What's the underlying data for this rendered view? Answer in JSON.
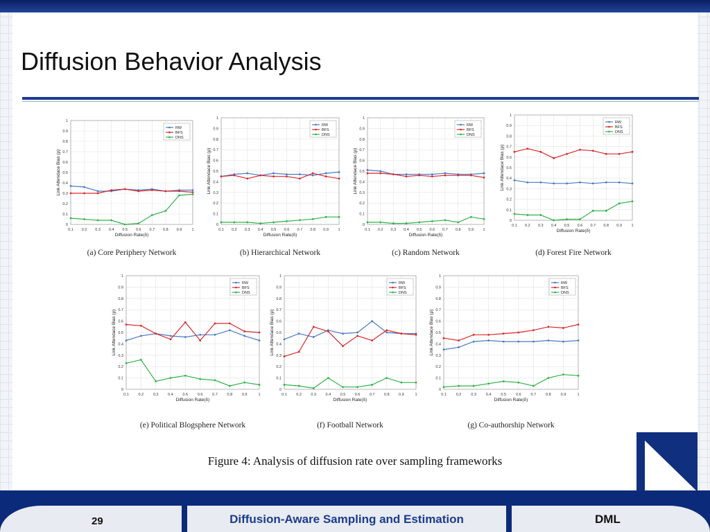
{
  "slide": {
    "title": "Diffusion Behavior Analysis",
    "caption": "Figure 4: Analysis of diffusion rate over sampling frameworks",
    "footer": {
      "page_number": "29",
      "title": "Diffusion-Aware Sampling and Estimation",
      "org": "DML"
    }
  },
  "colors": {
    "RW": "#4a79c4",
    "BFS": "#d9272c",
    "DNS": "#2fb24a"
  },
  "chart_data": [
    {
      "type": "line",
      "caption": "(a) Core Periphery Network",
      "xlabel": "Diffusion Rate(δ)",
      "ylabel": "Link Attendace Bias (ρ)",
      "x": [
        0.1,
        0.2,
        0.3,
        0.4,
        0.5,
        0.6,
        0.7,
        0.8,
        0.9,
        1
      ],
      "xticks": [
        "0.1",
        "0.2",
        "0.3",
        "0.4",
        "0.5",
        "0.6",
        "0.7",
        "0.8",
        "0.9",
        "1"
      ],
      "ylim": [
        0,
        1
      ],
      "yticks": [
        "0",
        "0.1",
        "0.2",
        "0.3",
        "0.4",
        "0.5",
        "0.6",
        "0.7",
        "0.8",
        "0.9",
        "1"
      ],
      "legend": "top-right",
      "series": [
        {
          "name": "RW",
          "values": [
            0.37,
            0.36,
            0.32,
            0.32,
            0.34,
            0.33,
            0.34,
            0.32,
            0.33,
            0.33
          ]
        },
        {
          "name": "BFS",
          "values": [
            0.3,
            0.3,
            0.3,
            0.33,
            0.34,
            0.32,
            0.33,
            0.32,
            0.32,
            0.31
          ]
        },
        {
          "name": "DNS",
          "values": [
            0.06,
            0.05,
            0.04,
            0.04,
            0.0,
            0.01,
            0.09,
            0.13,
            0.28,
            0.29
          ]
        }
      ]
    },
    {
      "type": "line",
      "caption": "(b) Hierarchical Network",
      "xlabel": "Diffusion Rate(δ)",
      "ylabel": "Link Attendace Bias (ρ)",
      "x": [
        0.1,
        0.2,
        0.3,
        0.4,
        0.5,
        0.6,
        0.7,
        0.8,
        0.9,
        1
      ],
      "xticks": [
        "0.1",
        "0.2",
        "0.3",
        "0.4",
        "0.5",
        "0.6",
        "0.7",
        "0.8",
        "0.9",
        "1"
      ],
      "ylim": [
        0,
        1
      ],
      "yticks": [
        "0",
        "0.1",
        "0.2",
        "0.3",
        "0.4",
        "0.5",
        "0.6",
        "0.7",
        "0.8",
        "0.9",
        "1"
      ],
      "legend": "top-right",
      "series": [
        {
          "name": "RW",
          "values": [
            0.45,
            0.47,
            0.48,
            0.46,
            0.48,
            0.47,
            0.47,
            0.46,
            0.48,
            0.49
          ]
        },
        {
          "name": "BFS",
          "values": [
            0.45,
            0.46,
            0.43,
            0.46,
            0.45,
            0.45,
            0.43,
            0.48,
            0.45,
            0.43
          ]
        },
        {
          "name": "DNS",
          "values": [
            0.02,
            0.02,
            0.02,
            0.01,
            0.02,
            0.03,
            0.04,
            0.05,
            0.07,
            0.07
          ]
        }
      ]
    },
    {
      "type": "line",
      "caption": "(c) Random Network",
      "xlabel": "Diffusion Rate(δ)",
      "ylabel": "Link Attendace Bias (ρ)",
      "x": [
        0.1,
        0.2,
        0.3,
        0.4,
        0.5,
        0.6,
        0.7,
        0.8,
        0.9,
        1
      ],
      "xticks": [
        "0.1",
        "0.2",
        "0.3",
        "0.4",
        "0.5",
        "0.6",
        "0.7",
        "0.8",
        "0.9",
        "1"
      ],
      "ylim": [
        0,
        1
      ],
      "yticks": [
        "0",
        "0.1",
        "0.2",
        "0.3",
        "0.4",
        "0.5",
        "0.6",
        "0.7",
        "0.8",
        "0.9",
        "1"
      ],
      "legend": "top-right",
      "series": [
        {
          "name": "RW",
          "values": [
            0.51,
            0.5,
            0.47,
            0.47,
            0.47,
            0.47,
            0.48,
            0.47,
            0.47,
            0.48
          ]
        },
        {
          "name": "BFS",
          "values": [
            0.48,
            0.48,
            0.47,
            0.45,
            0.46,
            0.45,
            0.46,
            0.46,
            0.46,
            0.44
          ]
        },
        {
          "name": "DNS",
          "values": [
            0.02,
            0.02,
            0.01,
            0.01,
            0.02,
            0.03,
            0.04,
            0.02,
            0.07,
            0.05
          ]
        }
      ]
    },
    {
      "type": "line",
      "caption": "(d) Forest Fire Network",
      "xlabel": "Diffusion Rate(δ)",
      "ylabel": "Link Attendace Bias (ρ)",
      "x": [
        0.1,
        0.2,
        0.3,
        0.4,
        0.5,
        0.6,
        0.7,
        0.8,
        0.9,
        1
      ],
      "xticks": [
        "0.1",
        "0.2",
        "0.3",
        "0.4",
        "0.5",
        "0.6",
        "0.7",
        "0.8",
        "0.9",
        "1"
      ],
      "ylim": [
        0,
        1
      ],
      "yticks": [
        "0",
        "0.1",
        "0.2",
        "0.3",
        "0.4",
        "0.5",
        "0.6",
        "0.7",
        "0.8",
        "0.9",
        "1"
      ],
      "legend": "top-right",
      "series": [
        {
          "name": "RW",
          "values": [
            0.38,
            0.36,
            0.36,
            0.35,
            0.35,
            0.36,
            0.35,
            0.36,
            0.36,
            0.35
          ]
        },
        {
          "name": "BFS",
          "values": [
            0.65,
            0.68,
            0.65,
            0.59,
            0.63,
            0.67,
            0.66,
            0.63,
            0.63,
            0.65
          ]
        },
        {
          "name": "DNS",
          "values": [
            0.06,
            0.05,
            0.05,
            0.0,
            0.01,
            0.01,
            0.09,
            0.09,
            0.16,
            0.18
          ]
        }
      ]
    },
    {
      "type": "line",
      "caption": "(e) Political Blogsphere Network",
      "xlabel": "Diffusion Rate(δ)",
      "ylabel": "Link Attendace Bias (ρ)",
      "x": [
        0.1,
        0.2,
        0.3,
        0.4,
        0.5,
        0.6,
        0.7,
        0.8,
        0.9,
        1
      ],
      "xticks": [
        "0.1",
        "0.2",
        "0.3",
        "0.4",
        "0.5",
        "0.6",
        "0.7",
        "0.8",
        "0.9",
        "1"
      ],
      "ylim": [
        0,
        1
      ],
      "yticks": [
        "0",
        "0.1",
        "0.2",
        "0.3",
        "0.4",
        "0.5",
        "0.6",
        "0.7",
        "0.8",
        "0.9",
        "1"
      ],
      "legend": "top-right",
      "series": [
        {
          "name": "RW",
          "values": [
            0.43,
            0.47,
            0.49,
            0.47,
            0.46,
            0.48,
            0.48,
            0.52,
            0.47,
            0.43
          ]
        },
        {
          "name": "BFS",
          "values": [
            0.57,
            0.56,
            0.49,
            0.44,
            0.59,
            0.43,
            0.58,
            0.58,
            0.51,
            0.5
          ]
        },
        {
          "name": "DNS",
          "values": [
            0.23,
            0.26,
            0.07,
            0.1,
            0.12,
            0.09,
            0.08,
            0.03,
            0.06,
            0.04
          ]
        }
      ]
    },
    {
      "type": "line",
      "caption": "(f) Football Network",
      "xlabel": "Diffusion Rate(δ)",
      "ylabel": "Link Attendace Bias (ρ)",
      "x": [
        0.1,
        0.2,
        0.3,
        0.4,
        0.5,
        0.6,
        0.7,
        0.8,
        0.9,
        1
      ],
      "xticks": [
        "0.1",
        "0.2",
        "0.3",
        "0.4",
        "0.5",
        "0.6",
        "0.7",
        "0.8",
        "0.9",
        "1"
      ],
      "ylim": [
        0,
        1
      ],
      "yticks": [
        "0",
        "0.1",
        "0.2",
        "0.3",
        "0.4",
        "0.5",
        "0.6",
        "0.7",
        "0.8",
        "0.9",
        "1"
      ],
      "legend": "top-right",
      "series": [
        {
          "name": "RW",
          "values": [
            0.44,
            0.49,
            0.46,
            0.52,
            0.49,
            0.5,
            0.6,
            0.5,
            0.49,
            0.49
          ]
        },
        {
          "name": "BFS",
          "values": [
            0.29,
            0.33,
            0.55,
            0.51,
            0.38,
            0.47,
            0.43,
            0.52,
            0.49,
            0.48
          ]
        },
        {
          "name": "DNS",
          "values": [
            0.04,
            0.03,
            0.01,
            0.1,
            0.02,
            0.02,
            0.04,
            0.1,
            0.06,
            0.06
          ]
        }
      ]
    },
    {
      "type": "line",
      "caption": "(g) Co-authorship Network",
      "xlabel": "Diffusion Rate(δ)",
      "ylabel": "Link Attendace Bias (ρ)",
      "x": [
        0.1,
        0.2,
        0.3,
        0.4,
        0.5,
        0.6,
        0.7,
        0.8,
        0.9,
        1
      ],
      "xticks": [
        "0.1",
        "0.2",
        "0.3",
        "0.4",
        "0.5",
        "0.6",
        "0.7",
        "0.8",
        "0.9",
        "1"
      ],
      "ylim": [
        0,
        1
      ],
      "yticks": [
        "0",
        "0.1",
        "0.2",
        "0.3",
        "0.4",
        "0.5",
        "0.6",
        "0.7",
        "0.8",
        "0.9",
        "1"
      ],
      "legend": "top-right",
      "series": [
        {
          "name": "RW",
          "values": [
            0.35,
            0.37,
            0.42,
            0.43,
            0.42,
            0.42,
            0.42,
            0.43,
            0.42,
            0.43
          ]
        },
        {
          "name": "BFS",
          "values": [
            0.45,
            0.43,
            0.48,
            0.48,
            0.49,
            0.5,
            0.52,
            0.55,
            0.54,
            0.57
          ]
        },
        {
          "name": "DNS",
          "values": [
            0.02,
            0.03,
            0.03,
            0.05,
            0.07,
            0.06,
            0.03,
            0.1,
            0.13,
            0.12
          ]
        }
      ]
    }
  ]
}
